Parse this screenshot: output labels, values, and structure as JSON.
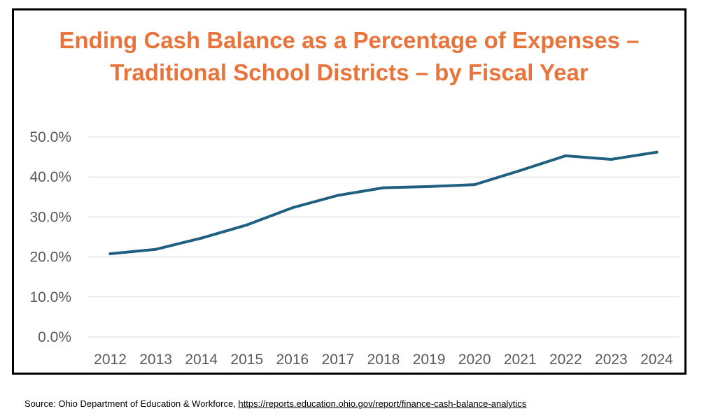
{
  "chart_data": {
    "type": "line",
    "title": "Ending Cash Balance as a Percentage of Expenses – Traditional School Districts – by Fiscal Year",
    "categories": [
      "2012",
      "2013",
      "2014",
      "2015",
      "2016",
      "2017",
      "2018",
      "2019",
      "2020",
      "2021",
      "2022",
      "2023",
      "2024"
    ],
    "series": [
      {
        "values": [
          20.8,
          21.9,
          24.7,
          28.0,
          32.3,
          35.4,
          37.3,
          37.6,
          38.1,
          41.6,
          45.3,
          44.4,
          46.2
        ]
      }
    ],
    "ylim": [
      0,
      50
    ],
    "yticks": [
      "0.0%",
      "10.0%",
      "20.0%",
      "30.0%",
      "40.0%",
      "50.0%"
    ],
    "xlabel": "",
    "ylabel": "",
    "grid": true,
    "legend": "none",
    "colors": {
      "line": "#1F5F7F",
      "title": "#E8743B",
      "grid": "#D9D9D9",
      "tick_text": "#595959"
    }
  },
  "source": {
    "prefix": "Source:  Ohio Department of Education & Workforce, ",
    "link_text": "https://reports.education.ohio.gov/report/finance-cash-balance-analytics"
  }
}
